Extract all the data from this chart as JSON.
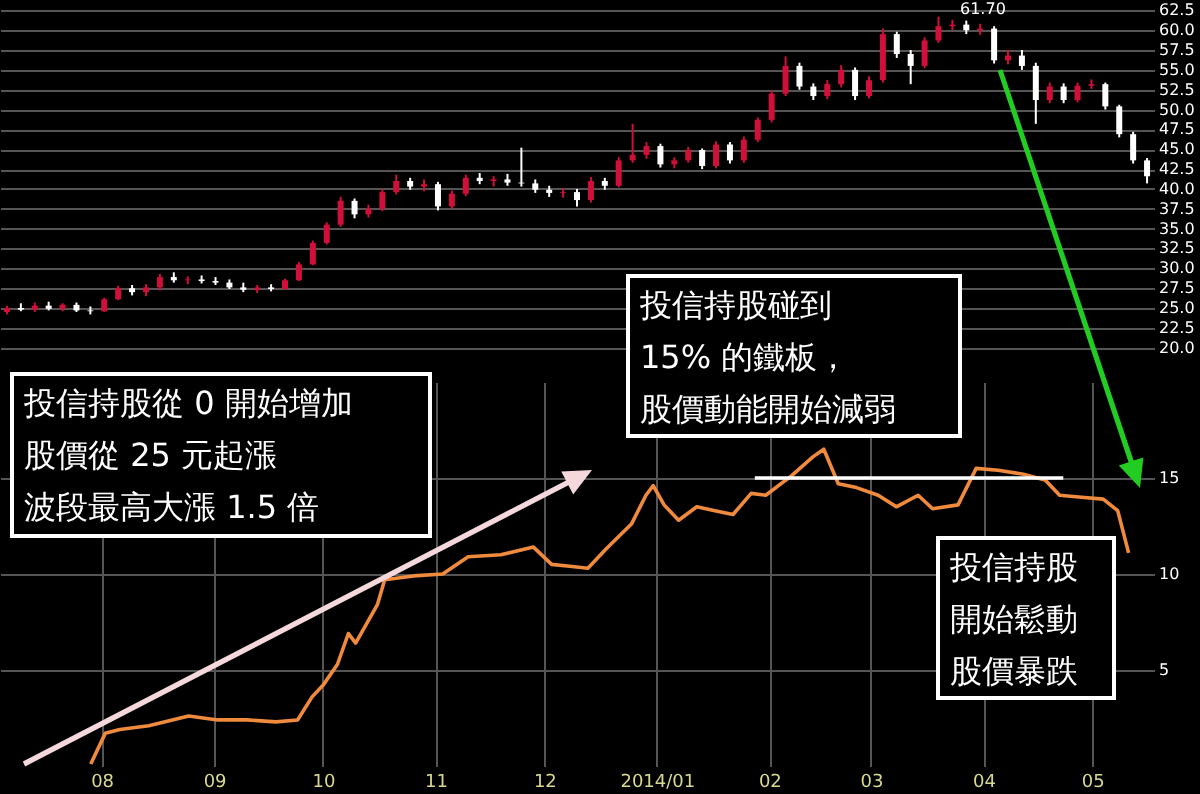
{
  "chart_data": [
    {
      "type": "candlestick",
      "categories": [
        null,
        null,
        null,
        null,
        null,
        null,
        null,
        null,
        null,
        null,
        null,
        null,
        null,
        null,
        null,
        null,
        null,
        null,
        null,
        null,
        null,
        null,
        null,
        null,
        null,
        null,
        null,
        null,
        null,
        null,
        null,
        null,
        null,
        null,
        null,
        null,
        null,
        null,
        null,
        null,
        null,
        null,
        null,
        null,
        null,
        null,
        null,
        null,
        null,
        null,
        null,
        null,
        null,
        null,
        null,
        null,
        null,
        null,
        null,
        null,
        null,
        null,
        null,
        null,
        null,
        null,
        null,
        null,
        null,
        null,
        null,
        null,
        null,
        null,
        null,
        null,
        null,
        null,
        null,
        null,
        null,
        null,
        null
      ],
      "ohlc": [
        [
          24.5,
          25.3,
          24.2,
          25.0
        ],
        [
          25.0,
          25.6,
          24.6,
          24.8
        ],
        [
          24.8,
          25.7,
          24.5,
          25.3
        ],
        [
          25.3,
          25.8,
          24.7,
          24.9
        ],
        [
          24.9,
          25.6,
          24.6,
          25.4
        ],
        [
          25.4,
          25.7,
          24.5,
          24.7
        ],
        [
          24.7,
          25.2,
          24.2,
          24.6
        ],
        [
          24.6,
          26.3,
          24.5,
          26.1
        ],
        [
          26.1,
          27.8,
          26.0,
          27.5
        ],
        [
          27.5,
          27.9,
          26.6,
          27.0
        ],
        [
          27.0,
          28.0,
          26.5,
          27.6
        ],
        [
          27.6,
          29.3,
          27.2,
          28.9
        ],
        [
          28.9,
          29.5,
          28.2,
          28.5
        ],
        [
          28.5,
          29.0,
          28.0,
          28.6
        ],
        [
          28.6,
          29.1,
          28.1,
          28.4
        ],
        [
          28.4,
          28.9,
          27.9,
          28.2
        ],
        [
          28.2,
          28.6,
          27.4,
          27.6
        ],
        [
          27.6,
          28.2,
          27.0,
          27.3
        ],
        [
          27.3,
          27.9,
          26.9,
          27.6
        ],
        [
          27.6,
          28.0,
          27.1,
          27.4
        ],
        [
          27.4,
          28.7,
          27.3,
          28.5
        ],
        [
          28.5,
          30.8,
          28.4,
          30.5
        ],
        [
          30.5,
          33.5,
          30.4,
          33.2
        ],
        [
          33.2,
          35.8,
          33.0,
          35.5
        ],
        [
          35.5,
          39.0,
          35.2,
          38.5
        ],
        [
          38.5,
          38.8,
          36.3,
          36.8
        ],
        [
          36.8,
          38.0,
          36.4,
          37.5
        ],
        [
          37.5,
          40.0,
          37.2,
          39.6
        ],
        [
          39.6,
          41.8,
          39.3,
          41.0
        ],
        [
          41.0,
          41.4,
          39.9,
          40.3
        ],
        [
          40.3,
          41.2,
          39.7,
          40.6
        ],
        [
          40.6,
          40.9,
          37.3,
          37.8
        ],
        [
          37.8,
          39.8,
          37.5,
          39.4
        ],
        [
          39.4,
          41.8,
          39.1,
          41.4
        ],
        [
          41.4,
          42.0,
          40.6,
          41.0
        ],
        [
          41.0,
          41.6,
          40.3,
          41.2
        ],
        [
          41.2,
          41.9,
          40.4,
          40.8
        ],
        [
          40.8,
          45.2,
          40.3,
          40.7
        ],
        [
          40.7,
          41.2,
          39.5,
          39.9
        ],
        [
          39.9,
          40.4,
          39.0,
          39.5
        ],
        [
          39.5,
          40.1,
          38.9,
          39.6
        ],
        [
          39.6,
          40.0,
          37.8,
          38.6
        ],
        [
          38.6,
          41.5,
          38.3,
          41.0
        ],
        [
          41.0,
          41.4,
          39.9,
          40.4
        ],
        [
          40.4,
          44.0,
          40.2,
          43.6
        ],
        [
          43.6,
          48.2,
          43.3,
          44.3
        ],
        [
          44.3,
          45.9,
          43.8,
          45.4
        ],
        [
          45.4,
          45.7,
          42.7,
          43.1
        ],
        [
          43.1,
          44.0,
          42.6,
          43.6
        ],
        [
          43.6,
          45.3,
          43.3,
          44.9
        ],
        [
          44.9,
          45.1,
          42.5,
          42.9
        ],
        [
          42.9,
          46.0,
          42.6,
          45.6
        ],
        [
          45.6,
          45.9,
          43.2,
          43.6
        ],
        [
          43.6,
          46.6,
          43.3,
          46.2
        ],
        [
          46.2,
          49.0,
          45.9,
          48.7
        ],
        [
          48.7,
          52.4,
          48.4,
          52.0
        ],
        [
          52.0,
          56.7,
          51.7,
          55.5
        ],
        [
          55.5,
          55.9,
          52.5,
          52.9
        ],
        [
          52.9,
          53.3,
          51.2,
          51.7
        ],
        [
          51.7,
          53.7,
          51.3,
          53.2
        ],
        [
          53.2,
          55.6,
          52.8,
          55.0
        ],
        [
          55.0,
          55.3,
          51.2,
          51.7
        ],
        [
          51.7,
          54.2,
          51.4,
          53.7
        ],
        [
          53.7,
          60.2,
          53.4,
          59.5
        ],
        [
          59.5,
          59.8,
          56.5,
          57.0
        ],
        [
          57.0,
          57.5,
          53.2,
          55.5
        ],
        [
          55.5,
          59.1,
          55.2,
          58.7
        ],
        [
          58.7,
          61.7,
          58.4,
          60.5
        ],
        [
          60.5,
          61.3,
          60.0,
          60.7
        ],
        [
          60.7,
          61.2,
          59.5,
          60.0
        ],
        [
          60.0,
          60.8,
          59.4,
          60.2
        ],
        [
          60.2,
          60.5,
          55.8,
          56.2
        ],
        [
          56.2,
          57.5,
          55.7,
          56.8
        ],
        [
          56.8,
          57.5,
          55.0,
          55.5
        ],
        [
          55.5,
          55.9,
          48.2,
          51.2
        ],
        [
          51.2,
          53.4,
          50.8,
          52.9
        ],
        [
          52.9,
          53.3,
          50.8,
          51.2
        ],
        [
          51.2,
          53.4,
          50.9,
          53.0
        ],
        [
          53.0,
          53.8,
          52.6,
          53.2
        ],
        [
          53.2,
          53.4,
          50.0,
          50.4
        ],
        [
          50.4,
          50.6,
          46.5,
          46.9
        ],
        [
          46.9,
          47.2,
          43.2,
          43.6
        ],
        [
          43.6,
          43.9,
          40.7,
          41.6
        ]
      ],
      "colors": [
        "#d0103a",
        "#ffffff",
        "#d0103a",
        "#ffffff",
        "#d0103a",
        "#ffffff",
        "#ffffff",
        "#d0103a",
        "#d0103a",
        "#ffffff",
        "#d0103a",
        "#d0103a",
        "#ffffff",
        "#d0103a",
        "#ffffff",
        "#ffffff",
        "#ffffff",
        "#ffffff",
        "#d0103a",
        "#ffffff",
        "#d0103a",
        "#d0103a",
        "#d0103a",
        "#d0103a",
        "#d0103a",
        "#ffffff",
        "#d0103a",
        "#d0103a",
        "#d0103a",
        "#ffffff",
        "#d0103a",
        "#ffffff",
        "#d0103a",
        "#d0103a",
        "#ffffff",
        "#d0103a",
        "#ffffff",
        "#ffffff",
        "#ffffff",
        "#ffffff",
        "#d0103a",
        "#ffffff",
        "#d0103a",
        "#ffffff",
        "#d0103a",
        "#d0103a",
        "#d0103a",
        "#ffffff",
        "#d0103a",
        "#d0103a",
        "#ffffff",
        "#d0103a",
        "#ffffff",
        "#d0103a",
        "#d0103a",
        "#d0103a",
        "#d0103a",
        "#ffffff",
        "#ffffff",
        "#d0103a",
        "#d0103a",
        "#ffffff",
        "#d0103a",
        "#d0103a",
        "#ffffff",
        "#ffffff",
        "#d0103a",
        "#d0103a",
        "#d0103a",
        "#ffffff",
        "#d0103a",
        "#ffffff",
        "#d0103a",
        "#ffffff",
        "#ffffff",
        "#d0103a",
        "#ffffff",
        "#d0103a",
        "#d0103a",
        "#ffffff",
        "#ffffff",
        "#ffffff",
        "#ffffff"
      ],
      "ylim": [
        17.7,
        63.8
      ],
      "yticks": [
        {
          "value": 20,
          "label": "20.0"
        },
        {
          "value": 22.5,
          "label": "22.5"
        },
        {
          "value": 25,
          "label": "25.0"
        },
        {
          "value": 27.5,
          "label": "27.5"
        },
        {
          "value": 30,
          "label": "30.0"
        },
        {
          "value": 32.5,
          "label": "32.5"
        },
        {
          "value": 35,
          "label": "35.0"
        },
        {
          "value": 37.5,
          "label": "37.5"
        },
        {
          "value": 40,
          "label": "40.0"
        },
        {
          "value": 42.5,
          "label": "42.5"
        },
        {
          "value": 45,
          "label": "45.0"
        },
        {
          "value": 47.5,
          "label": "47.5"
        },
        {
          "value": 50,
          "label": "50.0"
        },
        {
          "value": 52.5,
          "label": "52.5"
        },
        {
          "value": 55,
          "label": "55.0"
        },
        {
          "value": 57.5,
          "label": "57.5"
        },
        {
          "value": 60,
          "label": "60.0"
        },
        {
          "value": 62.5,
          "label": "62.5"
        }
      ],
      "tick_labels": "y",
      "grid": "y",
      "annotations": [
        "61.70"
      ]
    },
    {
      "type": "line",
      "series": [
        {
          "color": "#f08a3c",
          "x": [
            "2013-07-29",
            "2013-08-02",
            "2013-08-06",
            "2013-08-14",
            "2013-08-25",
            "2013-09-02",
            "2013-09-10",
            "2013-09-18",
            "2013-09-24",
            "2013-09-28",
            "2013-10-01",
            "2013-10-05",
            "2013-10-08",
            "2013-10-10",
            "2013-10-13",
            "2013-10-16",
            "2013-10-18",
            "2013-10-26",
            "2013-11-03",
            "2013-11-10",
            "2013-11-19",
            "2013-11-28",
            "2013-12-03",
            "2013-12-08",
            "2013-12-13",
            "2013-12-18",
            "2013-12-25",
            "2013-12-29",
            "2013-12-31",
            "2014-01-03",
            "2014-01-07",
            "2014-01-12",
            "2014-01-17",
            "2014-01-22",
            "2014-01-27",
            "2014-01-31",
            "2014-02-07",
            "2014-02-13",
            "2014-02-16",
            "2014-02-20",
            "2014-02-25",
            "2014-03-03",
            "2014-03-08",
            "2014-03-14",
            "2014-03-18",
            "2014-03-25",
            "2014-03-30",
            "2014-04-05",
            "2014-04-12",
            "2014-04-18",
            "2014-04-22",
            "2014-04-28",
            "2014-05-04",
            "2014-05-08",
            "2014-05-11"
          ],
          "values": [
            0.1,
            1.7,
            1.9,
            2.1,
            2.6,
            2.4,
            2.4,
            2.3,
            2.4,
            3.6,
            4.2,
            5.3,
            6.9,
            6.4,
            7.4,
            8.4,
            9.7,
            9.9,
            10.0,
            10.9,
            11.0,
            11.4,
            10.5,
            10.4,
            10.3,
            11.3,
            12.6,
            14.1,
            14.6,
            13.6,
            12.8,
            13.5,
            13.3,
            13.1,
            14.2,
            14.1,
            15.1,
            16.1,
            16.5,
            14.7,
            14.5,
            14.1,
            13.5,
            14.1,
            13.4,
            13.6,
            15.5,
            15.4,
            15.2,
            14.9,
            14.1,
            14.0,
            13.9,
            13.3,
            11.1
          ]
        },
        {
          "type": "line",
          "color": "#ffffff",
          "x": [
            "2014-01-28",
            "2014-04-23"
          ],
          "values": [
            15,
            15
          ]
        }
      ],
      "xlim": [
        "2013-07-04",
        "2014-05-18"
      ],
      "xticks": [
        {
          "value": "2013-08-01",
          "label": "08"
        },
        {
          "value": "2013-09-01",
          "label": "09"
        },
        {
          "value": "2013-10-01",
          "label": "10"
        },
        {
          "value": "2013-11-01",
          "label": "11"
        },
        {
          "value": "2013-12-01",
          "label": "12"
        },
        {
          "value": "2014-01-01",
          "label": "2014/01"
        },
        {
          "value": "2014-02-01",
          "label": "02"
        },
        {
          "value": "2014-03-01",
          "label": "03"
        },
        {
          "value": "2014-04-01",
          "label": "04"
        },
        {
          "value": "2014-05-01",
          "label": "05"
        }
      ],
      "ylim": [
        0,
        20
      ],
      "yticks": [
        5,
        10,
        15
      ],
      "grid": true,
      "annotations": [
        "投信持股從 0 開始增加",
        "股價從 25 元起漲",
        "波段最高大漲 1.5 倍",
        "投信持股碰到",
        "15% 的鐵板，",
        "股價動能開始減弱",
        "投信持股",
        "開始鬆動",
        "股價暴跌"
      ]
    }
  ]
}
